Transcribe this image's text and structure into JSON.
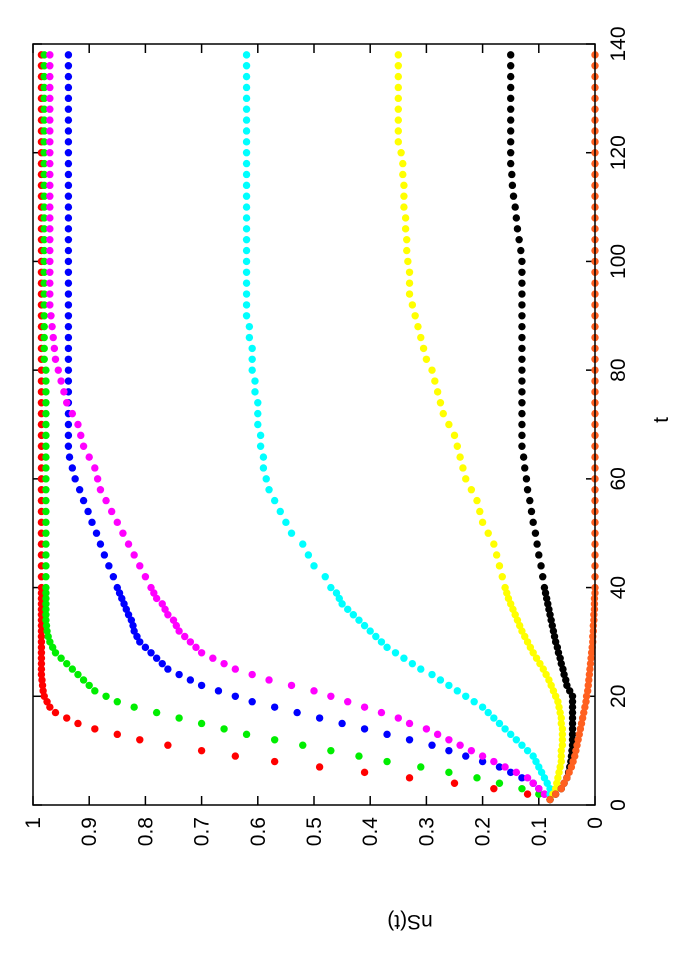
{
  "chart_data": {
    "type": "scatter",
    "xlabel": "t",
    "ylabel": "nS(t)",
    "xlim": [
      0,
      140
    ],
    "xticks": [
      0,
      20,
      40,
      60,
      80,
      100,
      120,
      140
    ],
    "ylim": [
      0,
      1
    ],
    "yticks": [
      0,
      0.1,
      0.2,
      0.3,
      0.4,
      0.5,
      0.6,
      0.7,
      0.8,
      0.9,
      1
    ],
    "x": [
      1,
      2,
      3,
      4,
      5,
      6,
      7,
      8,
      9,
      10,
      11,
      12,
      13,
      14,
      15,
      16,
      17,
      18,
      19,
      20,
      21,
      22,
      23,
      24,
      25,
      26,
      27,
      28,
      29,
      30,
      31,
      32,
      33,
      34,
      35,
      36,
      37,
      38,
      39,
      40,
      42,
      44,
      46,
      48,
      50,
      52,
      54,
      56,
      58,
      60,
      62,
      64,
      66,
      68,
      70,
      72,
      74,
      76,
      78,
      80,
      82,
      84,
      86,
      88,
      90,
      92,
      94,
      96,
      98,
      100,
      102,
      104,
      106,
      108,
      110,
      112,
      114,
      116,
      118,
      120,
      122,
      124,
      126,
      128,
      130,
      132,
      134,
      136,
      138
    ],
    "series": [
      {
        "color": "#ff0000",
        "values": [
          0.08,
          0.12,
          0.18,
          0.25,
          0.33,
          0.41,
          0.49,
          0.57,
          0.64,
          0.7,
          0.76,
          0.81,
          0.85,
          0.89,
          0.92,
          0.94,
          0.96,
          0.97,
          0.975,
          0.98,
          0.982,
          0.983,
          0.984,
          0.985,
          0.985,
          0.985,
          0.985,
          0.985,
          0.985,
          0.985,
          0.985,
          0.985,
          0.985,
          0.985,
          0.985,
          0.985,
          0.985,
          0.985,
          0.985,
          0.985,
          0.985,
          0.985,
          0.985,
          0.985,
          0.985,
          0.985,
          0.985,
          0.985,
          0.985,
          0.985,
          0.985,
          0.985,
          0.985,
          0.985,
          0.985,
          0.985,
          0.985,
          0.985,
          0.985,
          0.985,
          0.985,
          0.985,
          0.985,
          0.985,
          0.985,
          0.985,
          0.985,
          0.985,
          0.985,
          0.985,
          0.985,
          0.985,
          0.985,
          0.985,
          0.985,
          0.985,
          0.985,
          0.985,
          0.985,
          0.985,
          0.985,
          0.985,
          0.985,
          0.985,
          0.985,
          0.985,
          0.985,
          0.985,
          0.985
        ]
      },
      {
        "color": "#00ee00",
        "values": [
          0.08,
          0.1,
          0.13,
          0.17,
          0.21,
          0.26,
          0.31,
          0.37,
          0.42,
          0.47,
          0.52,
          0.57,
          0.62,
          0.66,
          0.7,
          0.74,
          0.78,
          0.82,
          0.85,
          0.87,
          0.89,
          0.9,
          0.91,
          0.92,
          0.93,
          0.94,
          0.95,
          0.96,
          0.965,
          0.97,
          0.973,
          0.975,
          0.976,
          0.977,
          0.977,
          0.977,
          0.977,
          0.977,
          0.977,
          0.977,
          0.977,
          0.977,
          0.977,
          0.977,
          0.977,
          0.977,
          0.977,
          0.977,
          0.977,
          0.977,
          0.977,
          0.977,
          0.977,
          0.977,
          0.977,
          0.977,
          0.977,
          0.977,
          0.977,
          0.977,
          0.98,
          0.98,
          0.98,
          0.98,
          0.98,
          0.98,
          0.98,
          0.98,
          0.98,
          0.98,
          0.98,
          0.98,
          0.98,
          0.98,
          0.98,
          0.98,
          0.98,
          0.98,
          0.98,
          0.98,
          0.98,
          0.98,
          0.98,
          0.98,
          0.98,
          0.98,
          0.98,
          0.98,
          0.98
        ]
      },
      {
        "color": "#0000ff",
        "values": [
          0.08,
          0.09,
          0.1,
          0.11,
          0.13,
          0.15,
          0.17,
          0.2,
          0.23,
          0.26,
          0.29,
          0.33,
          0.37,
          0.41,
          0.45,
          0.49,
          0.53,
          0.57,
          0.61,
          0.64,
          0.67,
          0.7,
          0.72,
          0.74,
          0.76,
          0.77,
          0.78,
          0.79,
          0.8,
          0.81,
          0.815,
          0.82,
          0.822,
          0.825,
          0.83,
          0.834,
          0.838,
          0.842,
          0.846,
          0.85,
          0.857,
          0.865,
          0.873,
          0.88,
          0.887,
          0.895,
          0.902,
          0.91,
          0.917,
          0.925,
          0.93,
          0.935,
          0.937,
          0.937,
          0.937,
          0.937,
          0.937,
          0.937,
          0.937,
          0.937,
          0.937,
          0.937,
          0.937,
          0.937,
          0.937,
          0.937,
          0.937,
          0.937,
          0.937,
          0.937,
          0.937,
          0.937,
          0.937,
          0.937,
          0.937,
          0.937,
          0.937,
          0.937,
          0.937,
          0.937,
          0.937,
          0.937,
          0.937,
          0.937,
          0.937,
          0.937,
          0.937,
          0.937,
          0.937
        ]
      },
      {
        "color": "#ff00ff",
        "values": [
          0.08,
          0.09,
          0.1,
          0.11,
          0.12,
          0.14,
          0.16,
          0.18,
          0.2,
          0.22,
          0.24,
          0.26,
          0.28,
          0.3,
          0.33,
          0.35,
          0.38,
          0.41,
          0.44,
          0.47,
          0.5,
          0.54,
          0.58,
          0.61,
          0.64,
          0.66,
          0.68,
          0.7,
          0.71,
          0.72,
          0.73,
          0.74,
          0.745,
          0.75,
          0.76,
          0.765,
          0.77,
          0.78,
          0.785,
          0.79,
          0.8,
          0.81,
          0.82,
          0.83,
          0.84,
          0.85,
          0.86,
          0.87,
          0.88,
          0.885,
          0.89,
          0.9,
          0.91,
          0.915,
          0.92,
          0.93,
          0.94,
          0.945,
          0.95,
          0.955,
          0.96,
          0.962,
          0.964,
          0.966,
          0.968,
          0.97,
          0.97,
          0.97,
          0.97,
          0.97,
          0.97,
          0.97,
          0.97,
          0.97,
          0.97,
          0.97,
          0.97,
          0.97,
          0.97,
          0.97,
          0.97,
          0.97,
          0.97,
          0.97,
          0.97,
          0.97,
          0.97,
          0.97,
          0.97
        ]
      },
      {
        "color": "#00ffff",
        "values": [
          0.08,
          0.08,
          0.08,
          0.085,
          0.09,
          0.095,
          0.1,
          0.105,
          0.11,
          0.12,
          0.13,
          0.14,
          0.15,
          0.16,
          0.17,
          0.18,
          0.19,
          0.2,
          0.215,
          0.23,
          0.245,
          0.26,
          0.275,
          0.29,
          0.31,
          0.325,
          0.34,
          0.355,
          0.37,
          0.38,
          0.39,
          0.4,
          0.41,
          0.42,
          0.43,
          0.44,
          0.45,
          0.455,
          0.46,
          0.47,
          0.48,
          0.5,
          0.51,
          0.52,
          0.54,
          0.55,
          0.56,
          0.57,
          0.58,
          0.585,
          0.59,
          0.59,
          0.595,
          0.595,
          0.6,
          0.6,
          0.6,
          0.605,
          0.605,
          0.61,
          0.61,
          0.61,
          0.615,
          0.615,
          0.62,
          0.62,
          0.62,
          0.62,
          0.62,
          0.62,
          0.62,
          0.62,
          0.62,
          0.62,
          0.62,
          0.62,
          0.62,
          0.62,
          0.62,
          0.62,
          0.62,
          0.62,
          0.62,
          0.62,
          0.62,
          0.62,
          0.62,
          0.62,
          0.62
        ]
      },
      {
        "color": "#ffff00",
        "values": [
          0.08,
          0.075,
          0.07,
          0.068,
          0.066,
          0.064,
          0.062,
          0.06,
          0.06,
          0.06,
          0.058,
          0.058,
          0.058,
          0.058,
          0.06,
          0.06,
          0.062,
          0.064,
          0.066,
          0.07,
          0.074,
          0.078,
          0.082,
          0.087,
          0.092,
          0.098,
          0.104,
          0.11,
          0.115,
          0.12,
          0.125,
          0.13,
          0.134,
          0.138,
          0.142,
          0.146,
          0.15,
          0.154,
          0.157,
          0.16,
          0.165,
          0.17,
          0.175,
          0.18,
          0.19,
          0.2,
          0.205,
          0.21,
          0.22,
          0.23,
          0.235,
          0.24,
          0.245,
          0.25,
          0.26,
          0.27,
          0.275,
          0.28,
          0.285,
          0.29,
          0.3,
          0.305,
          0.31,
          0.315,
          0.32,
          0.325,
          0.33,
          0.33,
          0.33,
          0.333,
          0.335,
          0.335,
          0.337,
          0.337,
          0.34,
          0.34,
          0.34,
          0.342,
          0.342,
          0.345,
          0.35,
          0.35,
          0.35,
          0.35,
          0.35,
          0.35,
          0.35,
          0.35,
          0.35
        ]
      },
      {
        "color": "#000000",
        "values": [
          0.08,
          0.07,
          0.06,
          0.055,
          0.05,
          0.047,
          0.045,
          0.043,
          0.042,
          0.041,
          0.04,
          0.04,
          0.04,
          0.04,
          0.04,
          0.04,
          0.04,
          0.04,
          0.04,
          0.04,
          0.045,
          0.05,
          0.052,
          0.055,
          0.057,
          0.06,
          0.062,
          0.065,
          0.067,
          0.07,
          0.072,
          0.074,
          0.076,
          0.078,
          0.08,
          0.082,
          0.084,
          0.086,
          0.088,
          0.09,
          0.093,
          0.096,
          0.1,
          0.103,
          0.106,
          0.11,
          0.113,
          0.116,
          0.12,
          0.122,
          0.125,
          0.127,
          0.13,
          0.13,
          0.13,
          0.13,
          0.13,
          0.13,
          0.13,
          0.13,
          0.13,
          0.13,
          0.13,
          0.13,
          0.13,
          0.13,
          0.13,
          0.13,
          0.13,
          0.13,
          0.132,
          0.135,
          0.138,
          0.14,
          0.142,
          0.145,
          0.147,
          0.148,
          0.15,
          0.15,
          0.15,
          0.15,
          0.15,
          0.15,
          0.15,
          0.15,
          0.15,
          0.15,
          0.15
        ]
      },
      {
        "color": "#ff6020",
        "values": [
          0.08,
          0.07,
          0.06,
          0.055,
          0.05,
          0.046,
          0.042,
          0.039,
          0.036,
          0.034,
          0.032,
          0.03,
          0.028,
          0.026,
          0.024,
          0.022,
          0.02,
          0.018,
          0.016,
          0.015,
          0.013,
          0.012,
          0.011,
          0.01,
          0.009,
          0.008,
          0.007,
          0.006,
          0.005,
          0.004,
          0.004,
          0.003,
          0.003,
          0.002,
          0.002,
          0.001,
          0.001,
          0.001,
          0,
          0,
          0,
          0,
          0,
          0,
          0,
          0,
          0,
          0,
          0,
          0,
          0,
          0,
          0,
          0,
          0,
          0,
          0,
          0,
          0,
          0,
          0,
          0,
          0,
          0,
          0,
          0,
          0,
          0,
          0,
          0,
          0,
          0,
          0,
          0,
          0,
          0,
          0,
          0,
          0,
          0,
          0,
          0,
          0,
          0,
          0,
          0,
          0,
          0,
          0
        ]
      }
    ]
  }
}
